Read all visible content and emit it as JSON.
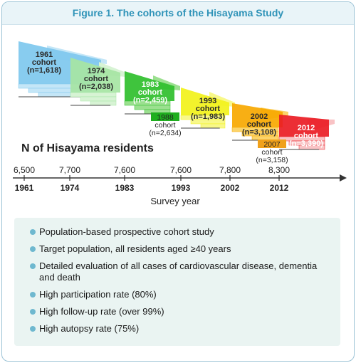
{
  "title": "Figure 1. The cohorts of the Hisayama Study",
  "cohorts": [
    {
      "name": "1961 cohort",
      "line1": "1961",
      "line2": "cohort",
      "line3": "(n=1,618)",
      "fill": "#7ec8ee",
      "fill_light": "#c4e6f7"
    },
    {
      "name": "1974 cohort",
      "line1": "1974",
      "line2": "cohort",
      "line3": "(n=2,038)",
      "fill": "#a6e5a3",
      "fill_light": "#d7f3d4"
    },
    {
      "name": "1983 cohort",
      "line1": "1983",
      "line2": "cohort",
      "line3": "(n=2,459)",
      "fill": "#2fbf2c",
      "fill_light": "#9be08f"
    },
    {
      "name": "1993 cohort",
      "line1": "1993",
      "line2": "cohort",
      "line3": "(n=1,983)",
      "fill": "#f2f21a",
      "fill_light": "#f8f88a"
    },
    {
      "name": "2002 cohort",
      "line1": "2002",
      "line2": "cohort",
      "line3": "(n=3,108)",
      "fill": "#f7a800",
      "fill_light": "#fbd46a"
    },
    {
      "name": "2012 cohort",
      "line1": "2012",
      "line2": "cohort",
      "line3": "(n=3,390)",
      "fill": "#ea1c24",
      "fill_light": "#f9c3c5"
    }
  ],
  "subcohorts": [
    {
      "line1": "1988",
      "line2": "cohort",
      "line3": "(n=2,634)",
      "fill": "#1fae1f"
    },
    {
      "line1": "2007",
      "line2": "cohort",
      "line3": "(n=3,158)",
      "fill": "#f0a11b"
    }
  ],
  "residents_heading": "N of Hisayama residents",
  "timeline": {
    "years": [
      "1961",
      "1974",
      "1983",
      "1993",
      "2002",
      "2012"
    ],
    "residents": [
      "6,500",
      "7,700",
      "7,600",
      "7,600",
      "7,800",
      "8,300"
    ],
    "axis_label": "Survey year"
  },
  "features": [
    "Population-based prospective cohort study",
    "Target population, all residents aged ≥40 years",
    "Detailed evaluation of all cases of cardiovascular disease, dementia and death",
    "High participation rate (80%)",
    "High follow-up rate (over 99%)",
    "High autopsy rate (75%)"
  ],
  "colors": {
    "accent": "#2f93b8",
    "list_bg": "#eaf4f2",
    "bullet": "#6fb8cf"
  }
}
